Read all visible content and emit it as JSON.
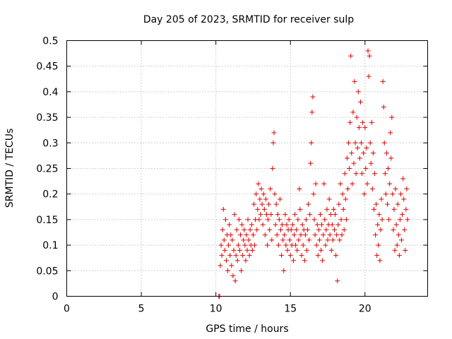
{
  "chart_data": {
    "type": "scatter",
    "title": "Day 205 of 2023, SRMTID for receiver sulp",
    "xlabel": "GPS time / hours",
    "ylabel": "SRMTID / TECUs",
    "xlim": [
      0,
      24.2
    ],
    "ylim": [
      0,
      0.5
    ],
    "xticks": [
      0,
      5,
      10,
      15,
      20
    ],
    "xtick_labels": [
      "0",
      "5",
      "10",
      "15",
      "20"
    ],
    "yticks": [
      0,
      0.05,
      0.1,
      0.15,
      0.2,
      0.25,
      0.3,
      0.35,
      0.4,
      0.45,
      0.5
    ],
    "ytick_labels": [
      "0",
      "0.05",
      "0.1",
      "0.15",
      "0.2",
      "0.25",
      "0.3",
      "0.35",
      "0.4",
      "0.45",
      "0.5"
    ],
    "grid": true,
    "marker": "+",
    "color": "#e00000",
    "series": [
      {
        "name": "SRMTID",
        "points": [
          [
            10.2,
            0.0
          ],
          [
            10.25,
            0.0
          ],
          [
            10.3,
            0.06
          ],
          [
            10.35,
            0.1
          ],
          [
            10.4,
            0.08
          ],
          [
            10.45,
            0.13
          ],
          [
            10.5,
            0.17
          ],
          [
            10.55,
            0.11
          ],
          [
            10.6,
            0.09
          ],
          [
            10.65,
            0.15
          ],
          [
            10.7,
            0.07
          ],
          [
            10.75,
            0.12
          ],
          [
            10.8,
            0.05
          ],
          [
            10.85,
            0.1
          ],
          [
            10.9,
            0.14
          ],
          [
            10.95,
            0.08
          ],
          [
            11.0,
            0.12
          ],
          [
            11.05,
            0.06
          ],
          [
            11.1,
            0.11
          ],
          [
            11.15,
            0.04
          ],
          [
            11.2,
            0.09
          ],
          [
            11.25,
            0.16
          ],
          [
            11.3,
            0.03
          ],
          [
            11.35,
            0.08
          ],
          [
            11.4,
            0.13
          ],
          [
            11.45,
            0.07
          ],
          [
            11.5,
            0.1
          ],
          [
            11.55,
            0.15
          ],
          [
            11.6,
            0.09
          ],
          [
            11.65,
            0.12
          ],
          [
            11.7,
            0.05
          ],
          [
            11.75,
            0.14
          ],
          [
            11.8,
            0.08
          ],
          [
            11.85,
            0.11
          ],
          [
            11.9,
            0.13
          ],
          [
            11.95,
            0.1
          ],
          [
            12.0,
            0.07
          ],
          [
            12.05,
            0.12
          ],
          [
            12.1,
            0.09
          ],
          [
            12.15,
            0.15
          ],
          [
            12.2,
            0.11
          ],
          [
            12.25,
            0.08
          ],
          [
            12.3,
            0.13
          ],
          [
            12.35,
            0.1
          ],
          [
            12.4,
            0.14
          ],
          [
            12.45,
            0.09
          ],
          [
            12.5,
            0.12
          ],
          [
            12.55,
            0.18
          ],
          [
            12.6,
            0.1
          ],
          [
            12.65,
            0.15
          ],
          [
            12.7,
            0.2
          ],
          [
            12.75,
            0.13
          ],
          [
            12.8,
            0.17
          ],
          [
            12.85,
            0.22
          ],
          [
            12.9,
            0.15
          ],
          [
            12.95,
            0.19
          ],
          [
            13.0,
            0.16
          ],
          [
            13.05,
            0.21
          ],
          [
            13.1,
            0.18
          ],
          [
            13.15,
            0.14
          ],
          [
            13.2,
            0.2
          ],
          [
            13.25,
            0.17
          ],
          [
            13.3,
            0.12
          ],
          [
            13.35,
            0.19
          ],
          [
            13.4,
            0.16
          ],
          [
            13.45,
            0.1
          ],
          [
            13.5,
            0.15
          ],
          [
            13.55,
            0.18
          ],
          [
            13.6,
            0.13
          ],
          [
            13.65,
            0.21
          ],
          [
            13.7,
            0.16
          ],
          [
            13.75,
            0.11
          ],
          [
            13.8,
            0.25
          ],
          [
            13.85,
            0.3
          ],
          [
            13.9,
            0.32
          ],
          [
            13.95,
            0.2
          ],
          [
            14.0,
            0.14
          ],
          [
            14.05,
            0.18
          ],
          [
            14.1,
            0.12
          ],
          [
            14.15,
            0.16
          ],
          [
            14.2,
            0.1
          ],
          [
            14.25,
            0.15
          ],
          [
            14.3,
            0.19
          ],
          [
            14.35,
            0.13
          ],
          [
            14.4,
            0.08
          ],
          [
            14.45,
            0.14
          ],
          [
            14.5,
            0.11
          ],
          [
            14.55,
            0.05
          ],
          [
            14.6,
            0.12
          ],
          [
            14.65,
            0.16
          ],
          [
            14.7,
            0.1
          ],
          [
            14.75,
            0.14
          ],
          [
            14.8,
            0.09
          ],
          [
            14.85,
            0.13
          ],
          [
            14.9,
            0.15
          ],
          [
            14.95,
            0.11
          ],
          [
            15.0,
            0.08
          ],
          [
            15.05,
            0.13
          ],
          [
            15.1,
            0.1
          ],
          [
            15.15,
            0.14
          ],
          [
            15.2,
            0.07
          ],
          [
            15.25,
            0.12
          ],
          [
            15.3,
            0.16
          ],
          [
            15.35,
            0.1
          ],
          [
            15.4,
            0.13
          ],
          [
            15.45,
            0.09
          ],
          [
            15.5,
            0.15
          ],
          [
            15.55,
            0.11
          ],
          [
            15.6,
            0.21
          ],
          [
            15.65,
            0.17
          ],
          [
            15.7,
            0.12
          ],
          [
            15.75,
            0.08
          ],
          [
            15.8,
            0.14
          ],
          [
            15.85,
            0.1
          ],
          [
            15.9,
            0.13
          ],
          [
            15.95,
            0.07
          ],
          [
            16.0,
            0.12
          ],
          [
            16.05,
            0.15
          ],
          [
            16.1,
            0.09
          ],
          [
            16.15,
            0.13
          ],
          [
            16.2,
            0.18
          ],
          [
            16.25,
            0.11
          ],
          [
            16.3,
            0.16
          ],
          [
            16.35,
            0.26
          ],
          [
            16.4,
            0.3
          ],
          [
            16.45,
            0.36
          ],
          [
            16.5,
            0.39
          ],
          [
            16.55,
            0.2
          ],
          [
            16.6,
            0.15
          ],
          [
            16.65,
            0.12
          ],
          [
            16.7,
            0.22
          ],
          [
            16.75,
            0.1
          ],
          [
            16.8,
            0.14
          ],
          [
            16.85,
            0.08
          ],
          [
            16.9,
            0.13
          ],
          [
            16.95,
            0.11
          ],
          [
            17.0,
            0.16
          ],
          [
            17.05,
            0.09
          ],
          [
            17.1,
            0.14
          ],
          [
            17.15,
            0.07
          ],
          [
            17.2,
            0.12
          ],
          [
            17.25,
            0.22
          ],
          [
            17.3,
            0.15
          ],
          [
            17.35,
            0.1
          ],
          [
            17.4,
            0.13
          ],
          [
            17.45,
            0.17
          ],
          [
            17.5,
            0.11
          ],
          [
            17.55,
            0.14
          ],
          [
            17.6,
            0.19
          ],
          [
            17.65,
            0.12
          ],
          [
            17.7,
            0.16
          ],
          [
            17.75,
            0.09
          ],
          [
            17.8,
            0.14
          ],
          [
            17.85,
            0.11
          ],
          [
            17.9,
            0.17
          ],
          [
            17.95,
            0.13
          ],
          [
            18.0,
            0.16
          ],
          [
            18.05,
            0.08
          ],
          [
            18.1,
            0.12
          ],
          [
            18.15,
            0.03
          ],
          [
            18.2,
            0.14
          ],
          [
            18.25,
            0.18
          ],
          [
            18.3,
            0.11
          ],
          [
            18.35,
            0.22
          ],
          [
            18.4,
            0.15
          ],
          [
            18.45,
            0.12
          ],
          [
            18.5,
            0.2
          ],
          [
            18.55,
            0.17
          ],
          [
            18.6,
            0.13
          ],
          [
            18.65,
            0.24
          ],
          [
            18.7,
            0.19
          ],
          [
            18.75,
            0.15
          ],
          [
            18.8,
            0.27
          ],
          [
            18.85,
            0.21
          ],
          [
            18.9,
            0.3
          ],
          [
            18.95,
            0.25
          ],
          [
            19.0,
            0.34
          ],
          [
            19.05,
            0.47
          ],
          [
            19.1,
            0.28
          ],
          [
            19.15,
            0.22
          ],
          [
            19.2,
            0.36
          ],
          [
            19.25,
            0.26
          ],
          [
            19.3,
            0.42
          ],
          [
            19.35,
            0.3
          ],
          [
            19.4,
            0.24
          ],
          [
            19.45,
            0.35
          ],
          [
            19.5,
            0.29
          ],
          [
            19.55,
            0.4
          ],
          [
            19.6,
            0.33
          ],
          [
            19.65,
            0.27
          ],
          [
            19.7,
            0.38
          ],
          [
            19.75,
            0.3
          ],
          [
            19.8,
            0.24
          ],
          [
            19.85,
            0.34
          ],
          [
            19.9,
            0.28
          ],
          [
            19.95,
            0.2
          ],
          [
            20.0,
            0.33
          ],
          [
            20.05,
            0.25
          ],
          [
            20.1,
            0.29
          ],
          [
            20.15,
            0.22
          ],
          [
            20.2,
            0.48
          ],
          [
            20.25,
            0.43
          ],
          [
            20.3,
            0.47
          ],
          [
            20.35,
            0.3
          ],
          [
            20.4,
            0.26
          ],
          [
            20.45,
            0.34
          ],
          [
            20.5,
            0.21
          ],
          [
            20.55,
            0.28
          ],
          [
            20.6,
            0.17
          ],
          [
            20.65,
            0.24
          ],
          [
            20.7,
            0.12
          ],
          [
            20.75,
            0.18
          ],
          [
            20.8,
            0.08
          ],
          [
            20.85,
            0.14
          ],
          [
            20.9,
            0.1
          ],
          [
            20.95,
            0.16
          ],
          [
            21.0,
            0.07
          ],
          [
            21.05,
            0.13
          ],
          [
            21.1,
            0.19
          ],
          [
            21.15,
            0.15
          ],
          [
            21.2,
            0.42
          ],
          [
            21.25,
            0.37
          ],
          [
            21.3,
            0.3
          ],
          [
            21.35,
            0.24
          ],
          [
            21.4,
            0.2
          ],
          [
            21.45,
            0.28
          ],
          [
            21.5,
            0.18
          ],
          [
            21.55,
            0.25
          ],
          [
            21.6,
            0.15
          ],
          [
            21.65,
            0.22
          ],
          [
            21.7,
            0.32
          ],
          [
            21.75,
            0.27
          ],
          [
            21.8,
            0.35
          ],
          [
            21.85,
            0.2
          ],
          [
            21.9,
            0.13
          ],
          [
            21.95,
            0.17
          ],
          [
            22.0,
            0.09
          ],
          [
            22.05,
            0.21
          ],
          [
            22.1,
            0.14
          ],
          [
            22.15,
            0.1
          ],
          [
            22.2,
            0.18
          ],
          [
            22.25,
            0.12
          ],
          [
            22.3,
            0.08
          ],
          [
            22.35,
            0.15
          ],
          [
            22.4,
            0.2
          ],
          [
            22.45,
            0.11
          ],
          [
            22.5,
            0.16
          ],
          [
            22.55,
            0.23
          ],
          [
            22.6,
            0.19
          ],
          [
            22.65,
            0.13
          ],
          [
            22.7,
            0.09
          ],
          [
            22.75,
            0.17
          ],
          [
            22.8,
            0.21
          ],
          [
            22.85,
            0.15
          ]
        ]
      }
    ]
  }
}
